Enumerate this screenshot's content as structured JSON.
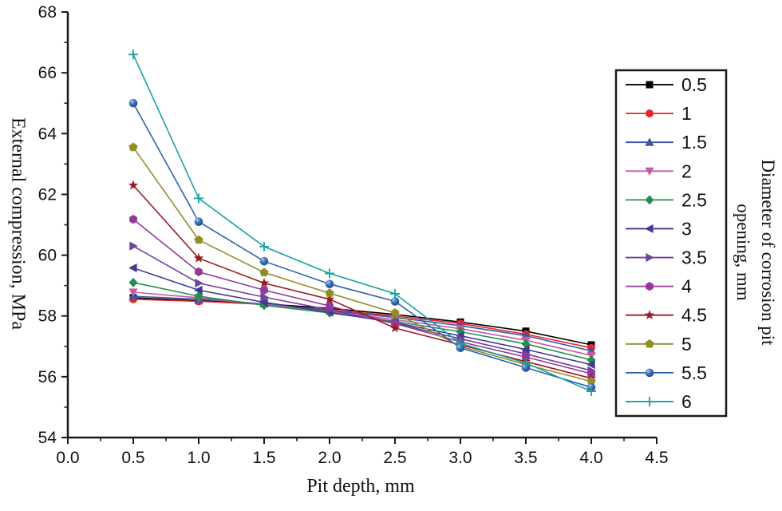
{
  "chart_data": {
    "type": "line",
    "title": "",
    "xlabel": "Pit depth, mm",
    "ylabel": "External compression, MPa",
    "right_label_line1": "Diameter of corrosion pit",
    "right_label_line2": "opening, mm",
    "xlim": [
      0.0,
      4.5
    ],
    "ylim": [
      54,
      68
    ],
    "xticks": [
      "0.0",
      "0.5",
      "1.0",
      "1.5",
      "2.0",
      "2.5",
      "3.0",
      "3.5",
      "4.0",
      "4.5"
    ],
    "yticks": [
      "54",
      "56",
      "58",
      "60",
      "62",
      "64",
      "66",
      "68"
    ],
    "x_minor_step": 0.25,
    "y_minor_step": 1,
    "grid": false,
    "legend_position": "right",
    "axis_color": "#1a1a1a",
    "x": [
      0.5,
      1.0,
      1.5,
      2.0,
      2.5,
      3.0,
      3.5,
      4.0
    ],
    "series": [
      {
        "name": "0.5",
        "marker": "square",
        "color": "#000000",
        "values": [
          58.6,
          58.5,
          58.4,
          58.25,
          58.05,
          57.8,
          57.5,
          57.05
        ]
      },
      {
        "name": "1",
        "marker": "circle",
        "color": "#e8262c",
        "values": [
          58.55,
          58.48,
          58.38,
          58.2,
          58.0,
          57.75,
          57.4,
          56.95
        ]
      },
      {
        "name": "1.5",
        "marker": "triangle-up",
        "color": "#3c56a5",
        "values": [
          58.65,
          58.55,
          58.4,
          58.18,
          57.95,
          57.68,
          57.35,
          56.85
        ]
      },
      {
        "name": "2",
        "marker": "triangle-down",
        "color": "#c35ba5",
        "values": [
          58.78,
          58.6,
          58.38,
          58.15,
          57.88,
          57.58,
          57.2,
          56.7
        ]
      },
      {
        "name": "2.5",
        "marker": "diamond",
        "color": "#23914c",
        "values": [
          59.1,
          58.65,
          58.35,
          58.1,
          57.82,
          57.48,
          57.08,
          56.55
        ]
      },
      {
        "name": "3",
        "marker": "triangle-left",
        "color": "#3e3a96",
        "values": [
          59.58,
          58.85,
          58.45,
          58.12,
          57.78,
          57.35,
          56.9,
          56.4
        ]
      },
      {
        "name": "3.5",
        "marker": "triangle-right",
        "color": "#6f42a0",
        "values": [
          60.3,
          59.08,
          58.62,
          58.2,
          57.75,
          57.25,
          56.75,
          56.2
        ]
      },
      {
        "name": "4",
        "marker": "hexagon",
        "color": "#93399a",
        "values": [
          61.18,
          59.45,
          58.85,
          58.33,
          57.75,
          57.15,
          56.65,
          56.1
        ]
      },
      {
        "name": "4.5",
        "marker": "star",
        "color": "#9c1b20",
        "values": [
          62.3,
          59.9,
          59.08,
          58.55,
          57.6,
          57.05,
          56.5,
          55.95
        ]
      },
      {
        "name": "5",
        "marker": "pentagon",
        "color": "#938d28",
        "values": [
          63.55,
          60.5,
          59.43,
          58.75,
          58.1,
          57.0,
          56.4,
          55.85
        ]
      },
      {
        "name": "5.5",
        "marker": "sphere",
        "color": "#2d62ad",
        "values": [
          65.0,
          61.1,
          59.8,
          59.05,
          58.48,
          56.95,
          56.3,
          55.65
        ]
      },
      {
        "name": "6",
        "marker": "plus",
        "color": "#17a2a0",
        "values": [
          66.6,
          61.87,
          60.28,
          59.4,
          58.73,
          57.1,
          56.45,
          55.52
        ]
      }
    ]
  }
}
